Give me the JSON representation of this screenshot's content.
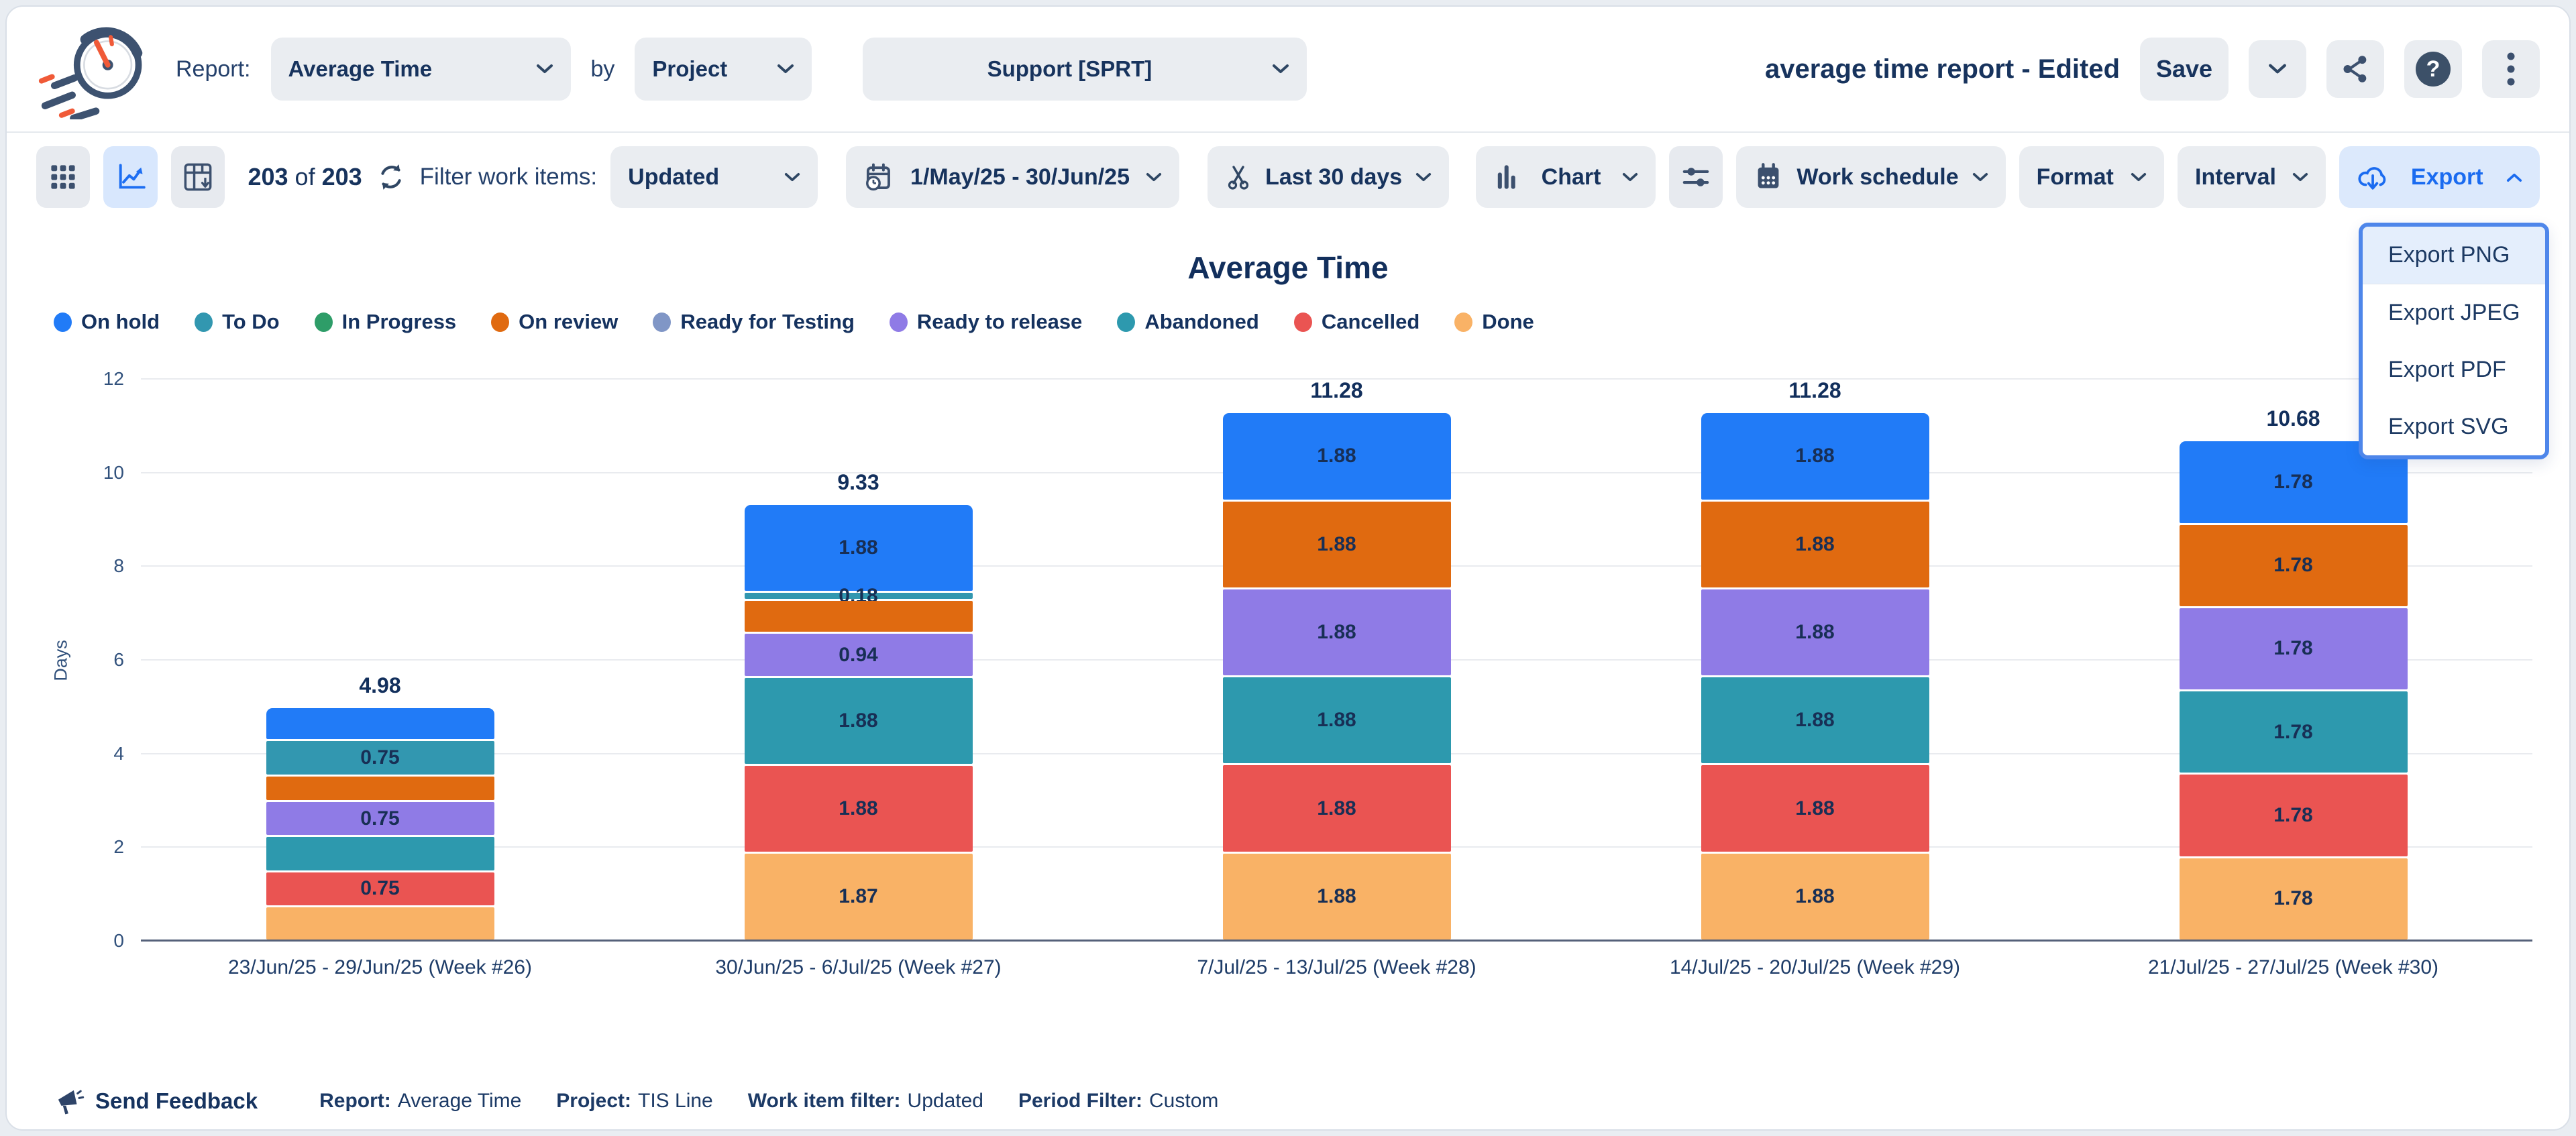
{
  "header": {
    "report_label": "Report:",
    "report_value": "Average Time",
    "by_label": "by",
    "group_by_value": "Project",
    "project_value": "Support [SPRT]",
    "doc_title": "average time report - Edited",
    "save_label": "Save"
  },
  "toolbar": {
    "count_current": "203",
    "count_of": "of",
    "count_total": "203",
    "filter_label": "Filter work items:",
    "filter_value": "Updated",
    "date_range_value": "1/May/25 - 30/Jun/25",
    "trim_value": "Last 30 days",
    "chart_label": "Chart",
    "work_schedule_label": "Work schedule",
    "format_label": "Format",
    "interval_label": "Interval",
    "export_label": "Export"
  },
  "export_menu": {
    "items": [
      "Export PNG",
      "Export JPEG",
      "Export PDF",
      "Export SVG"
    ],
    "active_item": "Export PNG"
  },
  "icons": {
    "app_logo": "stopwatch-speed",
    "view_toggles": [
      "grid-icon",
      "line-chart-icon",
      "pivot-table-icon"
    ],
    "refresh": "refresh-icon",
    "date_filter": "calendar-clock-icon",
    "trim": "scissors-icon",
    "chart": "bar-chart-icon",
    "settings": "sliders-icon",
    "work_schedule": "calendar-grid-icon",
    "export": "cloud-download-icon",
    "share": "share-icon",
    "help": "question-icon",
    "more": "kebab-icon",
    "feedback": "megaphone-icon"
  },
  "chart_data": {
    "type": "bar",
    "stacked": true,
    "title": "Average Time",
    "ylabel": "Days",
    "xlabel": "",
    "ylim": [
      0,
      12
    ],
    "yticks": [
      0,
      2,
      4,
      6,
      8,
      10,
      12
    ],
    "grid": true,
    "legend_position": "top-left",
    "legend": [
      "On hold",
      "To Do",
      "In Progress",
      "On review",
      "Ready for Testing",
      "Ready to release",
      "Abandoned",
      "Cancelled",
      "Done"
    ],
    "series_colors": {
      "On hold": "#217BF7",
      "To Do": "#3297B0",
      "In Progress": "#2E9D68",
      "On review": "#E06A10",
      "Ready for Testing": "#8096C6",
      "Ready to release": "#8F7BE6",
      "Abandoned": "#2D99AE",
      "Cancelled": "#EA5452",
      "Done": "#F9B266"
    },
    "categories": [
      "23/Jun/25 - 29/Jun/25 (Week #26)",
      "30/Jun/25 - 6/Jul/25 (Week #27)",
      "7/Jul/25 - 13/Jul/25 (Week #28)",
      "14/Jul/25 - 20/Jul/25 (Week #29)",
      "21/Jul/25 - 27/Jul/25 (Week #30)"
    ],
    "bars": [
      {
        "total": "4.98",
        "segments": [
          {
            "series": "On hold",
            "value": 0.7,
            "label": ""
          },
          {
            "series": "To Do",
            "value": 0.75,
            "label": "0.75"
          },
          {
            "series": "On review",
            "value": 0.55,
            "label": ""
          },
          {
            "series": "Ready to release",
            "value": 0.75,
            "label": "0.75"
          },
          {
            "series": "Abandoned",
            "value": 0.75,
            "label": ""
          },
          {
            "series": "Cancelled",
            "value": 0.75,
            "label": "0.75"
          },
          {
            "series": "Done",
            "value": 0.73,
            "label": ""
          }
        ]
      },
      {
        "total": "9.33",
        "segments": [
          {
            "series": "On hold",
            "value": 1.88,
            "label": "1.88"
          },
          {
            "series": "To Do",
            "value": 0.18,
            "label": "0.18"
          },
          {
            "series": "On review",
            "value": 0.7,
            "label": ""
          },
          {
            "series": "Ready to release",
            "value": 0.94,
            "label": "0.94"
          },
          {
            "series": "Abandoned",
            "value": 1.88,
            "label": "1.88"
          },
          {
            "series": "Cancelled",
            "value": 1.88,
            "label": "1.88"
          },
          {
            "series": "Done",
            "value": 1.87,
            "label": "1.87"
          }
        ]
      },
      {
        "total": "11.28",
        "segments": [
          {
            "series": "On hold",
            "value": 1.88,
            "label": "1.88"
          },
          {
            "series": "On review",
            "value": 1.88,
            "label": "1.88"
          },
          {
            "series": "Ready to release",
            "value": 1.88,
            "label": "1.88"
          },
          {
            "series": "Abandoned",
            "value": 1.88,
            "label": "1.88"
          },
          {
            "series": "Cancelled",
            "value": 1.88,
            "label": "1.88"
          },
          {
            "series": "Done",
            "value": 1.88,
            "label": "1.88"
          }
        ]
      },
      {
        "total": "11.28",
        "segments": [
          {
            "series": "On hold",
            "value": 1.88,
            "label": "1.88"
          },
          {
            "series": "On review",
            "value": 1.88,
            "label": "1.88"
          },
          {
            "series": "Ready to release",
            "value": 1.88,
            "label": "1.88"
          },
          {
            "series": "Abandoned",
            "value": 1.88,
            "label": "1.88"
          },
          {
            "series": "Cancelled",
            "value": 1.88,
            "label": "1.88"
          },
          {
            "series": "Done",
            "value": 1.88,
            "label": "1.88"
          }
        ]
      },
      {
        "total": "10.68",
        "segments": [
          {
            "series": "On hold",
            "value": 1.78,
            "label": "1.78"
          },
          {
            "series": "On review",
            "value": 1.78,
            "label": "1.78"
          },
          {
            "series": "Ready to release",
            "value": 1.78,
            "label": "1.78"
          },
          {
            "series": "Abandoned",
            "value": 1.78,
            "label": "1.78"
          },
          {
            "series": "Cancelled",
            "value": 1.78,
            "label": "1.78"
          },
          {
            "series": "Done",
            "value": 1.78,
            "label": "1.78"
          }
        ]
      }
    ]
  },
  "footer": {
    "feedback_label": "Send Feedback",
    "report_label": "Report:",
    "report_value": "Average Time",
    "project_label": "Project:",
    "project_value": "TIS Line",
    "work_item_filter_label": "Work item filter:",
    "work_item_filter_value": "Updated",
    "period_filter_label": "Period Filter:",
    "period_filter_value": "Custom"
  }
}
